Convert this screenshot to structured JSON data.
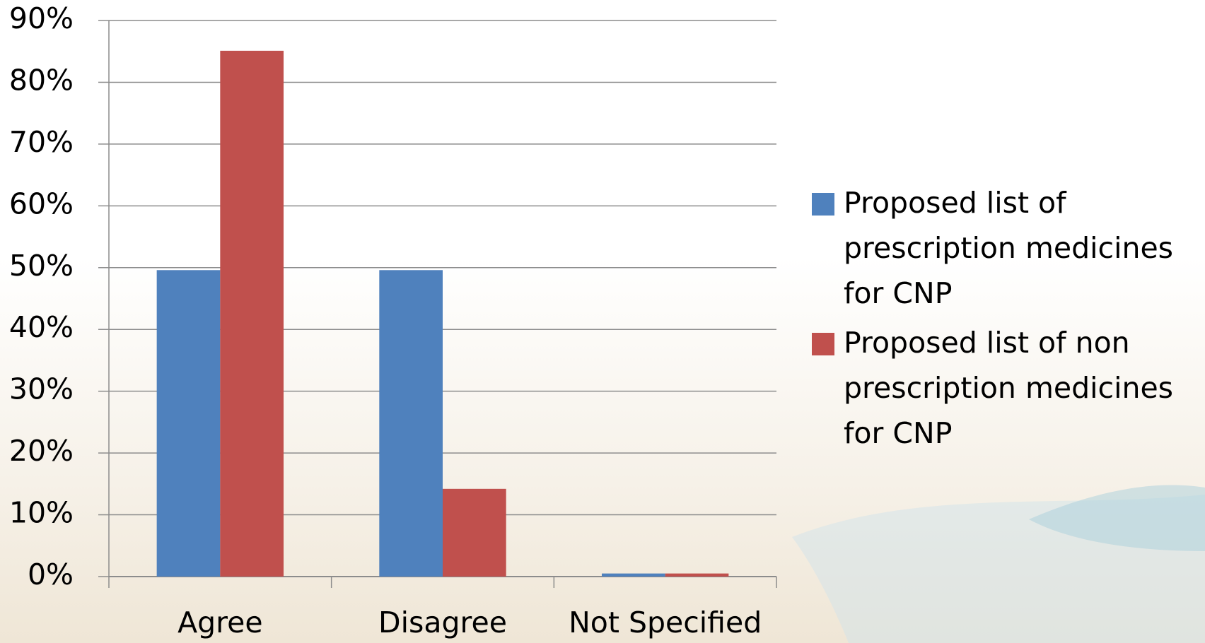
{
  "chart_data": {
    "type": "bar",
    "categories": [
      "Agree",
      "Disagree",
      "Not Specified"
    ],
    "series": [
      {
        "name": "Proposed list of prescription medicines for CNP",
        "color": "#4f81bd",
        "values": [
          49.6,
          49.6,
          0.5
        ]
      },
      {
        "name": "Proposed list of non prescription medicines for CNP",
        "color": "#c0504d",
        "values": [
          85.1,
          14.2,
          0.5
        ]
      }
    ],
    "ylim": [
      0,
      90
    ],
    "yticks": [
      {
        "value": 0,
        "label": "0%"
      },
      {
        "value": 10,
        "label": "10%"
      },
      {
        "value": 20,
        "label": "20%"
      },
      {
        "value": 30,
        "label": "30%"
      },
      {
        "value": 40,
        "label": "40%"
      },
      {
        "value": 50,
        "label": "50%"
      },
      {
        "value": 60,
        "label": "60%"
      },
      {
        "value": 70,
        "label": "70%"
      },
      {
        "value": 80,
        "label": "80%"
      },
      {
        "value": 90,
        "label": "90%"
      }
    ],
    "grid": true,
    "legend": "right"
  }
}
